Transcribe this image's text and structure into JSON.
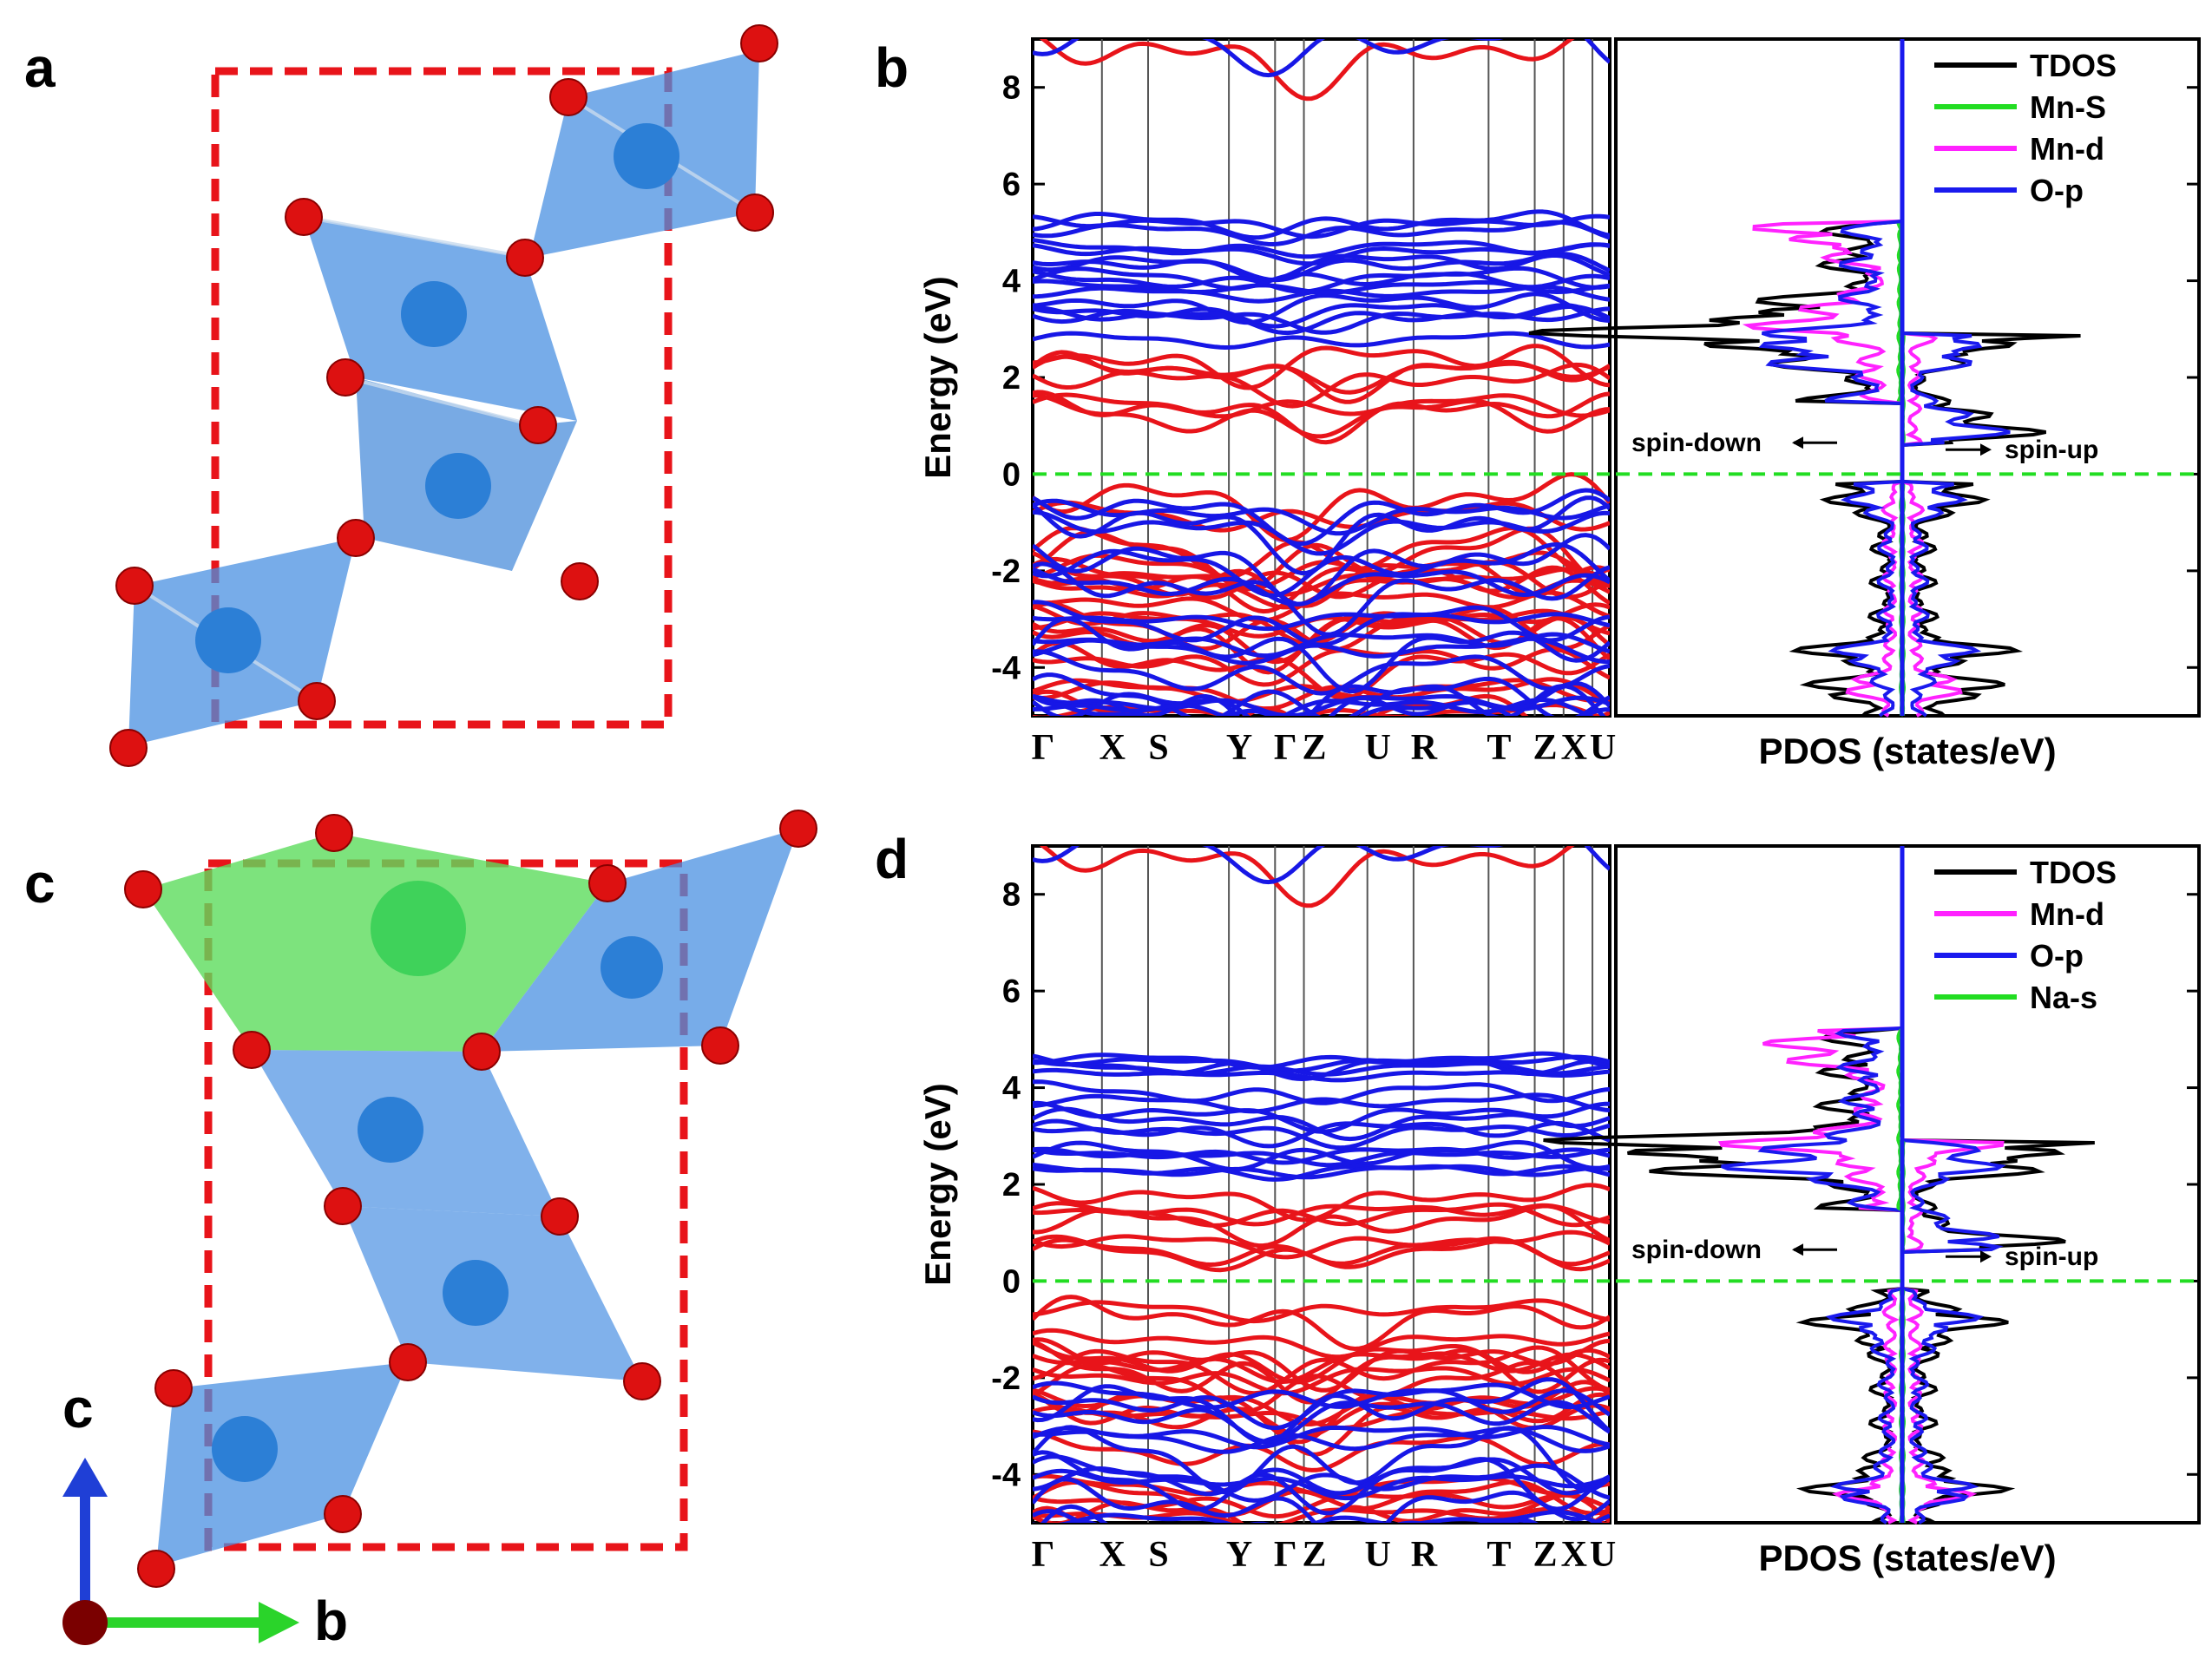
{
  "figure": {
    "panel_labels": {
      "a": "a",
      "b": "b",
      "c": "c",
      "d": "d"
    },
    "axes_triad": {
      "c_label": "c",
      "b_label": "b"
    }
  },
  "colors": {
    "spin_up_band": "#e8141a",
    "spin_down_band": "#1717e6",
    "fermi_line": "#22dd22",
    "tdos": "#000000",
    "mn_s": "#22dd22",
    "mn_d": "#ff22ff",
    "o_p": "#1a1aee",
    "na_s": "#22dd22",
    "unit_cell": "#e8141a",
    "octahedron": "#4a90e2",
    "polyhedron_na": "#5cdc5c",
    "oxygen": "#dd1111"
  },
  "chart_data": [
    {
      "type": "line",
      "panel": "b",
      "title": "",
      "ylabel": "Energy (eV)",
      "xlabel": "",
      "ylim": [
        -5,
        9
      ],
      "yticks": [
        "8",
        "6",
        "4",
        "2",
        "0",
        "-2",
        "-4"
      ],
      "yticks_values": [
        8,
        6,
        4,
        2,
        0,
        -2,
        -4
      ],
      "kpath_labels": [
        "Γ",
        "X",
        "S",
        "Y",
        "Γ",
        "Z",
        "U",
        "R",
        "T",
        "Z",
        "X",
        "U"
      ],
      "kpath_positions": [
        0,
        0.12,
        0.2,
        0.34,
        0.42,
        0.47,
        0.58,
        0.66,
        0.79,
        0.87,
        0.92,
        0.97
      ],
      "fermi_level": 0,
      "series": [
        {
          "name": "spin-up bands",
          "conduction_band_min": 0.8,
          "valence_band_max": -0.3,
          "energy_range": [
            -5,
            9
          ]
        },
        {
          "name": "spin-down bands",
          "conduction_band_min": 2.5,
          "valence_band_max": -0.3,
          "energy_range": [
            -5,
            9
          ]
        }
      ]
    },
    {
      "type": "line",
      "panel": "b-pdos",
      "xlabel": "PDOS (states/eV)",
      "ylim": [
        -5,
        9
      ],
      "legend": [
        "TDOS",
        "Mn-S",
        "Mn-d",
        "O-p"
      ],
      "annotations": [
        "spin-down",
        "spin-up"
      ],
      "series": [
        {
          "name": "TDOS",
          "peaks_eV": [
            3.2,
            2.7,
            1.0,
            -0.4,
            -3.7,
            -4.5
          ]
        },
        {
          "name": "Mn-S",
          "peaks_eV": []
        },
        {
          "name": "Mn-d",
          "peaks_eV": [
            3.2,
            4.9,
            -4.4
          ]
        },
        {
          "name": "O-p",
          "peaks_eV": [
            2.6,
            1.0,
            -0.4,
            -3.8
          ]
        }
      ]
    },
    {
      "type": "line",
      "panel": "d",
      "ylabel": "Energy (eV)",
      "ylim": [
        -5,
        9
      ],
      "yticks": [
        "8",
        "6",
        "4",
        "2",
        "0",
        "-2",
        "-4"
      ],
      "yticks_values": [
        8,
        6,
        4,
        2,
        0,
        -2,
        -4
      ],
      "kpath_labels": [
        "Γ",
        "X",
        "S",
        "Y",
        "Γ",
        "Z",
        "U",
        "R",
        "T",
        "Z",
        "X",
        "U"
      ],
      "kpath_positions": [
        0,
        0.12,
        0.2,
        0.34,
        0.42,
        0.47,
        0.58,
        0.66,
        0.79,
        0.87,
        0.92,
        0.97
      ],
      "fermi_level": 0,
      "series": [
        {
          "name": "spin-up bands",
          "conduction_band_min": 0.2,
          "valence_band_max": -0.3,
          "energy_range": [
            -5,
            9
          ]
        },
        {
          "name": "spin-down bands",
          "conduction_band_min": 1.9,
          "valence_band_max": -1.0,
          "energy_range": [
            -5,
            9
          ]
        }
      ]
    },
    {
      "type": "line",
      "panel": "d-pdos",
      "xlabel": "PDOS (states/eV)",
      "ylim": [
        -5,
        9
      ],
      "legend": [
        "TDOS",
        "Mn-d",
        "O-p",
        "Na-s"
      ],
      "annotations": [
        "spin-down",
        "spin-up"
      ],
      "series": [
        {
          "name": "TDOS",
          "peaks_eV": [
            2.8,
            2.5,
            0.8,
            -0.9,
            -4.2
          ]
        },
        {
          "name": "Mn-d",
          "peaks_eV": [
            2.8,
            4.8,
            -4.4
          ]
        },
        {
          "name": "O-p",
          "peaks_eV": [
            2.5,
            0.9,
            -0.9,
            -4.3
          ]
        },
        {
          "name": "Na-s",
          "peaks_eV": [
            8.5
          ]
        }
      ]
    }
  ]
}
